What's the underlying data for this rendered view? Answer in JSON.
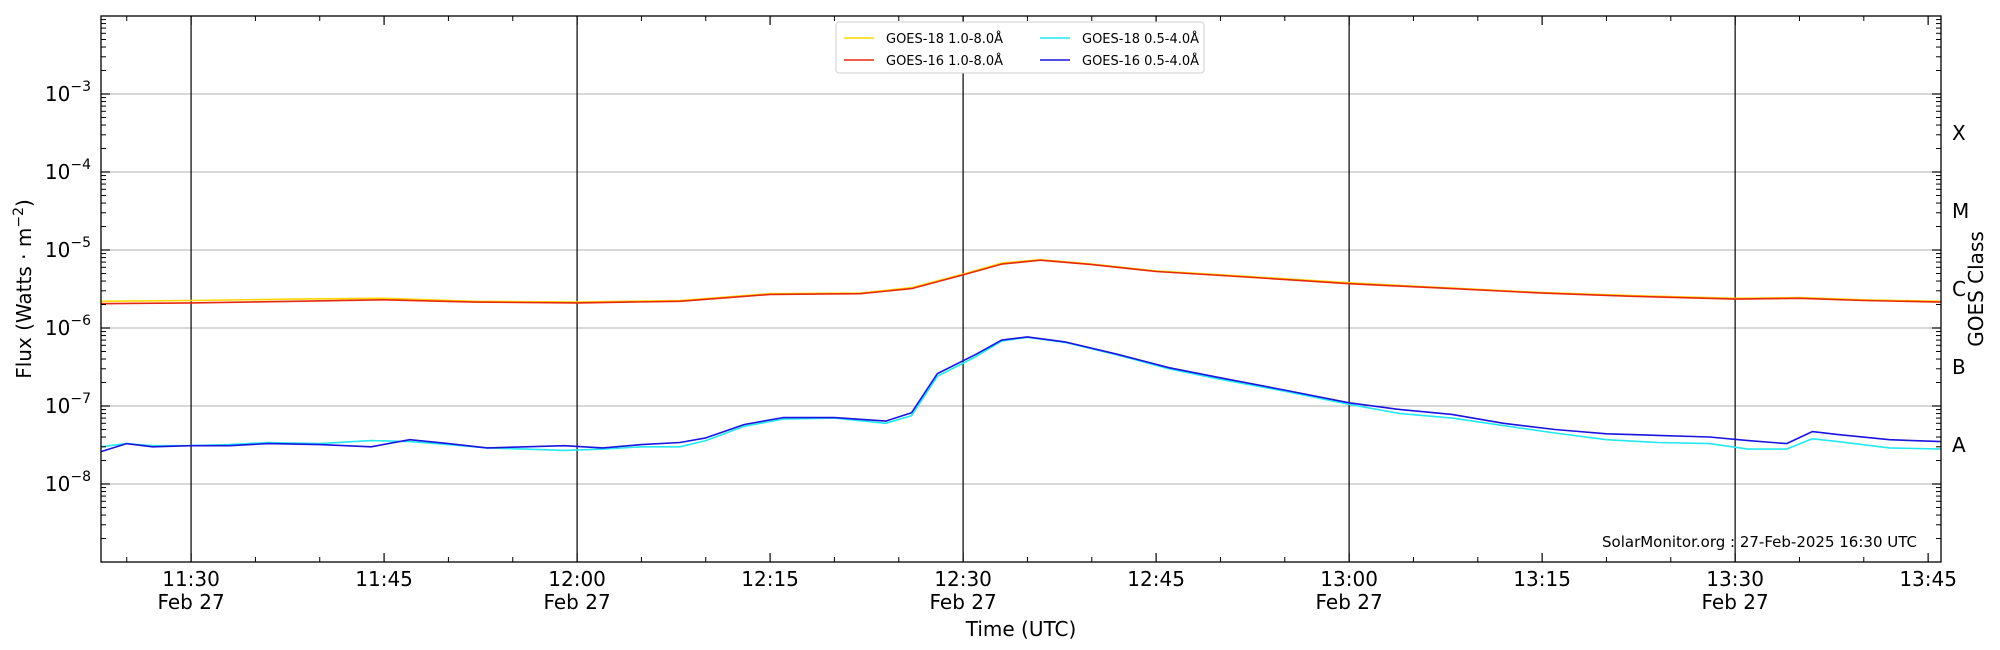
{
  "chart_data": {
    "type": "line",
    "title": "",
    "xlabel": "Time (UTC)",
    "ylabel_parts": {
      "main": "Flux (Watts · m",
      "sup": "−2",
      "close": ")"
    },
    "y_scale": "log",
    "ylim": [
      1e-09,
      0.01
    ],
    "xlim": [
      "11:23",
      "13:46"
    ],
    "grid": true,
    "legend_placement": "top-center",
    "y_ticks": [
      {
        "value": 1e-08,
        "mantissa": "10",
        "exponent": "−8"
      },
      {
        "value": 1e-07,
        "mantissa": "10",
        "exponent": "−7"
      },
      {
        "value": 1e-06,
        "mantissa": "10",
        "exponent": "−6"
      },
      {
        "value": 1e-05,
        "mantissa": "10",
        "exponent": "−5"
      },
      {
        "value": 0.0001,
        "mantissa": "10",
        "exponent": "−4"
      },
      {
        "value": 0.001,
        "mantissa": "10",
        "exponent": "−3"
      }
    ],
    "x_ticks": [
      {
        "time": "11:30",
        "label": "11:30",
        "date": "Feb 27"
      },
      {
        "time": "11:45",
        "label": "11:45",
        "date": ""
      },
      {
        "time": "12:00",
        "label": "12:00",
        "date": "Feb 27"
      },
      {
        "time": "12:15",
        "label": "12:15",
        "date": ""
      },
      {
        "time": "12:30",
        "label": "12:30",
        "date": "Feb 27"
      },
      {
        "time": "12:45",
        "label": "12:45",
        "date": ""
      },
      {
        "time": "13:00",
        "label": "13:00",
        "date": "Feb 27"
      },
      {
        "time": "13:15",
        "label": "13:15",
        "date": ""
      },
      {
        "time": "13:30",
        "label": "13:30",
        "date": "Feb 27"
      },
      {
        "time": "13:45",
        "label": "13:45",
        "date": ""
      }
    ],
    "vertical_markers": [
      "11:30",
      "12:00",
      "12:30",
      "13:00",
      "13:30"
    ],
    "goes_class": {
      "label": "GOES Class",
      "levels": [
        {
          "name": "A",
          "range": [
            1e-08,
            1e-07
          ]
        },
        {
          "name": "B",
          "range": [
            1e-07,
            1e-06
          ]
        },
        {
          "name": "C",
          "range": [
            1e-06,
            1e-05
          ]
        },
        {
          "name": "M",
          "range": [
            1e-05,
            0.0001
          ]
        },
        {
          "name": "X",
          "range": [
            0.0001,
            0.001
          ]
        }
      ]
    },
    "credit": "SolarMonitor.org : 27-Feb-2025 16:30 UTC",
    "series": [
      {
        "name": "GOES-18 1.0-8.0Å",
        "color": "#ffd700",
        "x": [
          "11:23",
          "11:30",
          "11:38",
          "11:45",
          "11:52",
          "12:00",
          "12:08",
          "12:15",
          "12:22",
          "12:26",
          "12:30",
          "12:33",
          "12:36",
          "12:40",
          "12:45",
          "12:52",
          "13:00",
          "13:08",
          "13:15",
          "13:22",
          "13:30",
          "13:35",
          "13:40",
          "13:46"
        ],
        "y": [
          2.2e-06,
          2.25e-06,
          2.35e-06,
          2.4e-06,
          2.2e-06,
          2.15e-06,
          2.25e-06,
          2.75e-06,
          2.8e-06,
          3.3e-06,
          4.9e-06,
          6.8e-06,
          7.5e-06,
          6.6e-06,
          5.4e-06,
          4.6e-06,
          3.8e-06,
          3.25e-06,
          2.85e-06,
          2.6e-06,
          2.4e-06,
          2.45e-06,
          2.3e-06,
          2.2e-06
        ]
      },
      {
        "name": "GOES-16 1.0-8.0Å",
        "color": "#e8280c",
        "x": [
          "11:23",
          "11:30",
          "11:38",
          "11:45",
          "11:52",
          "12:00",
          "12:08",
          "12:15",
          "12:22",
          "12:26",
          "12:30",
          "12:33",
          "12:36",
          "12:40",
          "12:45",
          "12:52",
          "13:00",
          "13:08",
          "13:15",
          "13:22",
          "13:30",
          "13:35",
          "13:40",
          "13:46"
        ],
        "y": [
          2.05e-06,
          2.1e-06,
          2.2e-06,
          2.3e-06,
          2.15e-06,
          2.1e-06,
          2.2e-06,
          2.7e-06,
          2.75e-06,
          3.2e-06,
          4.8e-06,
          6.6e-06,
          7.4e-06,
          6.5e-06,
          5.3e-06,
          4.5e-06,
          3.7e-06,
          3.2e-06,
          2.8e-06,
          2.55e-06,
          2.35e-06,
          2.4e-06,
          2.25e-06,
          2.15e-06
        ]
      },
      {
        "name": "GOES-18 0.5-4.0Å",
        "color": "#22e8f0",
        "x": [
          "11:23",
          "11:25",
          "11:27",
          "11:30",
          "11:33",
          "11:36",
          "11:40",
          "11:44",
          "11:47",
          "11:50",
          "11:53",
          "11:56",
          "11:59",
          "12:02",
          "12:05",
          "12:08",
          "12:10",
          "12:13",
          "12:16",
          "12:20",
          "12:24",
          "12:26",
          "12:28",
          "12:31",
          "12:33",
          "12:35",
          "12:38",
          "12:42",
          "12:46",
          "12:50",
          "12:55",
          "13:00",
          "13:04",
          "13:08",
          "13:12",
          "13:16",
          "13:20",
          "13:24",
          "13:28",
          "13:31",
          "13:34",
          "13:36",
          "13:38",
          "13:42",
          "13:46"
        ],
        "y": [
          3e-08,
          3.3e-08,
          3.1e-08,
          3.1e-08,
          3.2e-08,
          3.4e-08,
          3.3e-08,
          3.6e-08,
          3.5e-08,
          3.2e-08,
          2.9e-08,
          2.8e-08,
          2.7e-08,
          2.8e-08,
          3e-08,
          3e-08,
          3.6e-08,
          5.5e-08,
          6.8e-08,
          7e-08,
          6e-08,
          7.5e-08,
          2.4e-07,
          4.3e-07,
          6.8e-07,
          7.6e-07,
          6.5e-07,
          4.5e-07,
          3e-07,
          2.2e-07,
          1.55e-07,
          1.05e-07,
          8e-08,
          7e-08,
          5.6e-08,
          4.5e-08,
          3.7e-08,
          3.4e-08,
          3.3e-08,
          2.8e-08,
          2.8e-08,
          3.8e-08,
          3.5e-08,
          2.9e-08,
          2.8e-08
        ]
      },
      {
        "name": "GOES-16 0.5-4.0Å",
        "color": "#1a14e0",
        "x": [
          "11:23",
          "11:25",
          "11:27",
          "11:30",
          "11:33",
          "11:36",
          "11:40",
          "11:44",
          "11:47",
          "11:50",
          "11:53",
          "11:56",
          "11:59",
          "12:02",
          "12:05",
          "12:08",
          "12:10",
          "12:13",
          "12:16",
          "12:20",
          "12:24",
          "12:26",
          "12:28",
          "12:31",
          "12:33",
          "12:35",
          "12:38",
          "12:42",
          "12:46",
          "12:50",
          "12:55",
          "13:00",
          "13:04",
          "13:08",
          "13:12",
          "13:16",
          "13:20",
          "13:24",
          "13:28",
          "13:31",
          "13:34",
          "13:36",
          "13:38",
          "13:42",
          "13:46"
        ],
        "y": [
          2.6e-08,
          3.3e-08,
          3e-08,
          3.1e-08,
          3.1e-08,
          3.3e-08,
          3.2e-08,
          3e-08,
          3.7e-08,
          3.3e-08,
          2.9e-08,
          3e-08,
          3.1e-08,
          2.9e-08,
          3.2e-08,
          3.4e-08,
          3.9e-08,
          5.8e-08,
          7.1e-08,
          7.1e-08,
          6.4e-08,
          8.2e-08,
          2.6e-07,
          4.6e-07,
          7e-07,
          7.7e-07,
          6.6e-07,
          4.6e-07,
          3.1e-07,
          2.3e-07,
          1.6e-07,
          1.1e-07,
          9e-08,
          7.8e-08,
          6e-08,
          5e-08,
          4.4e-08,
          4.2e-08,
          4e-08,
          3.6e-08,
          3.3e-08,
          4.7e-08,
          4.3e-08,
          3.7e-08,
          3.5e-08
        ]
      }
    ]
  }
}
